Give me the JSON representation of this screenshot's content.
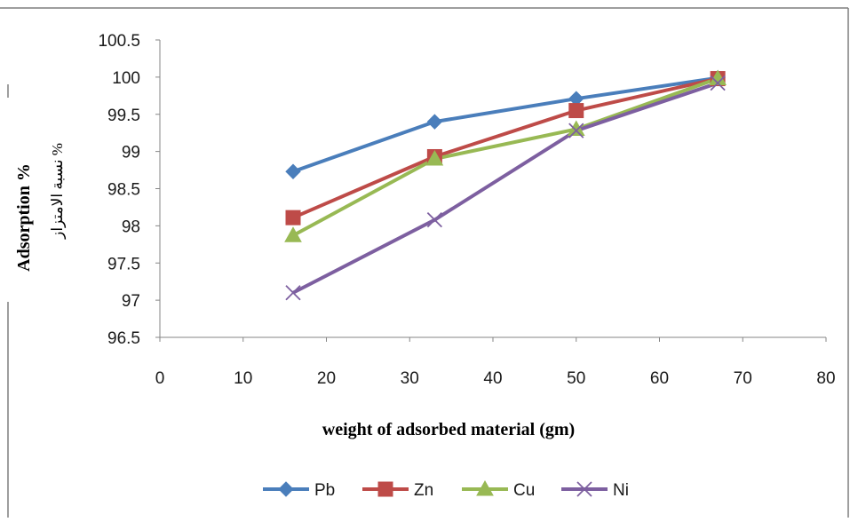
{
  "chart_data": {
    "type": "line",
    "title": "",
    "xlabel": "weight of adsorbed material (gm)",
    "ylabel": "Adsorption %",
    "ylabel_secondary": "نسبة الامتزاز %",
    "xlim": [
      0,
      80
    ],
    "ylim": [
      96.5,
      100.5
    ],
    "x_ticks": [
      "0",
      "10",
      "20",
      "30",
      "40",
      "50",
      "60",
      "70",
      "80"
    ],
    "y_ticks": [
      "100.5",
      "100",
      "99.5",
      "99",
      "98.5",
      "98",
      "97.5",
      "97",
      "96.5"
    ],
    "x_tick_values": [
      0,
      10,
      20,
      30,
      40,
      50,
      60,
      70,
      80
    ],
    "y_tick_values": [
      100.5,
      100,
      99.5,
      99,
      98.5,
      98,
      97.5,
      97,
      96.5
    ],
    "grid": false,
    "legend_position": "bottom",
    "x": [
      16,
      33,
      50,
      67
    ],
    "series": [
      {
        "name": "Pb",
        "values": [
          98.73,
          99.4,
          99.71,
          99.99
        ],
        "color": "#4a7ebb",
        "marker": "diamond"
      },
      {
        "name": "Zn",
        "values": [
          98.11,
          98.93,
          99.55,
          99.98
        ],
        "color": "#be4b48",
        "marker": "square"
      },
      {
        "name": "Cu",
        "values": [
          97.87,
          98.9,
          99.3,
          99.98
        ],
        "color": "#98b954",
        "marker": "triangle"
      },
      {
        "name": "Ni",
        "values": [
          97.1,
          98.08,
          99.28,
          99.92
        ],
        "color": "#7d5fa0",
        "marker": "x"
      }
    ]
  }
}
